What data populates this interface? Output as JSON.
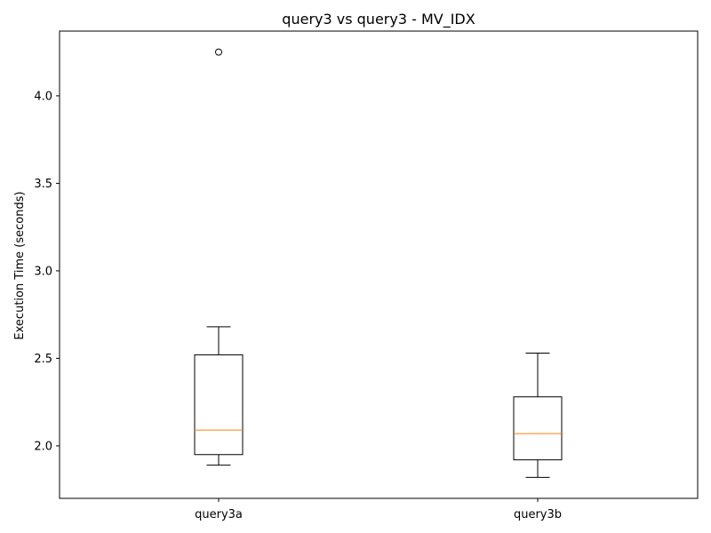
{
  "chart_data": {
    "type": "box",
    "title": "query3 vs query3 - MV_IDX",
    "xlabel": "",
    "ylabel": "Execution Time (seconds)",
    "ylim": [
      1.7,
      4.37
    ],
    "yticks": [
      2.0,
      2.5,
      3.0,
      3.5,
      4.0
    ],
    "ytick_labels": [
      "2.0",
      "2.5",
      "3.0",
      "3.5",
      "4.0"
    ],
    "categories": [
      "query3a",
      "query3b"
    ],
    "boxes": [
      {
        "category": "query3a",
        "whisker_low": 1.89,
        "q1": 1.95,
        "median": 2.09,
        "q3": 2.52,
        "whisker_high": 2.68,
        "outliers": [
          4.25
        ]
      },
      {
        "category": "query3b",
        "whisker_low": 1.82,
        "q1": 1.92,
        "median": 2.07,
        "q3": 2.28,
        "whisker_high": 2.53,
        "outliers": []
      }
    ],
    "colors": {
      "box": "#000000",
      "median": "#ff7f0e",
      "background": "#ffffff"
    },
    "grid": false,
    "legend": "none"
  }
}
